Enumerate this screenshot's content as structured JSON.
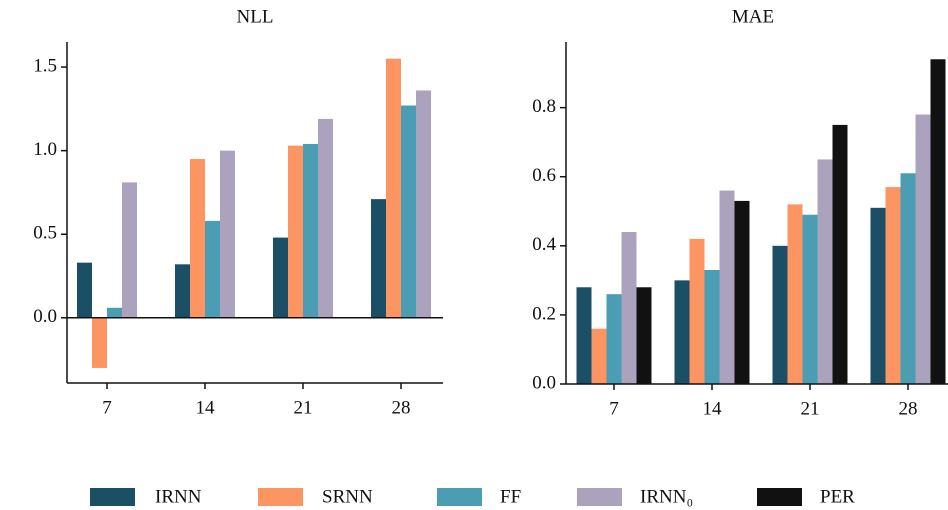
{
  "chart_data": [
    {
      "type": "bar",
      "title": "NLL",
      "categories": [
        "7",
        "14",
        "21",
        "28"
      ],
      "series": [
        {
          "name": "IRNN",
          "color": "#1b4f66",
          "values": [
            0.33,
            0.32,
            0.48,
            0.71
          ]
        },
        {
          "name": "SRNN",
          "color": "#fc9562",
          "values": [
            -0.3,
            0.95,
            1.03,
            1.55
          ]
        },
        {
          "name": "FF",
          "color": "#4a9db3",
          "values": [
            0.06,
            0.58,
            1.04,
            1.27
          ]
        },
        {
          "name": "IRNN₀",
          "color": "#aba3bd",
          "values": [
            0.81,
            1.0,
            1.19,
            1.36
          ]
        }
      ],
      "ylim": [
        -0.39,
        1.65
      ],
      "yticks": [
        {
          "value": 0,
          "label": "0.0"
        },
        0.5,
        {
          "value": 1,
          "label": "1.0"
        },
        1.5
      ]
    },
    {
      "type": "bar",
      "title": "MAE",
      "categories": [
        "7",
        "14",
        "21",
        "28"
      ],
      "series": [
        {
          "name": "IRNN",
          "color": "#1b4f66",
          "values": [
            0.28,
            0.3,
            0.4,
            0.51
          ]
        },
        {
          "name": "SRNN",
          "color": "#fc9562",
          "values": [
            0.16,
            0.42,
            0.52,
            0.57
          ]
        },
        {
          "name": "FF",
          "color": "#4a9db3",
          "values": [
            0.26,
            0.33,
            0.49,
            0.61
          ]
        },
        {
          "name": "IRNN₀",
          "color": "#aba3bd",
          "values": [
            0.44,
            0.56,
            0.65,
            0.78
          ]
        },
        {
          "name": "PER",
          "color": "#111111",
          "values": [
            0.28,
            0.53,
            0.75,
            0.94
          ]
        }
      ],
      "ylim": [
        0,
        0.99
      ],
      "yticks": [
        {
          "value": 0,
          "label": "0.0"
        },
        0.2,
        0.4,
        0.6,
        0.8
      ]
    }
  ]
}
